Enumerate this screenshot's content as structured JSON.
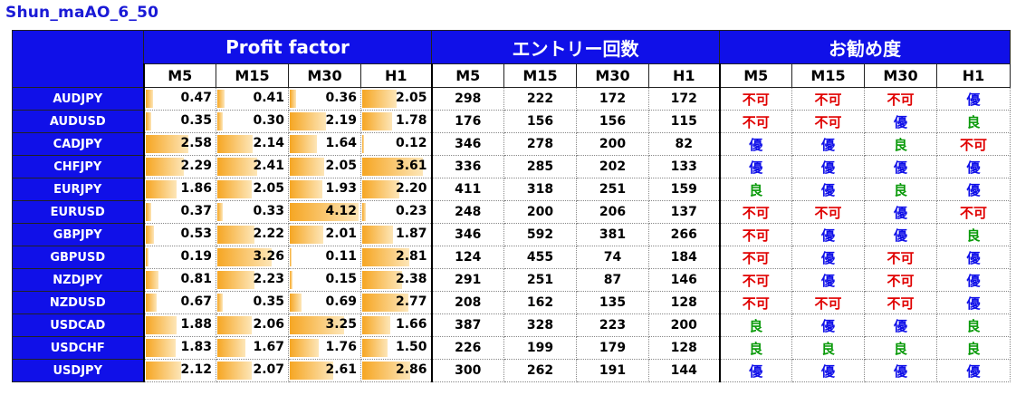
{
  "title": "Shun_maAO_6_50",
  "groups": [
    "Profit factor",
    "エントリー回数",
    "お勧め度"
  ],
  "timeframes": [
    "M5",
    "M15",
    "M30",
    "H1"
  ],
  "rec_colors": {
    "不可": "#e00000",
    "優": "#1010e8",
    "良": "#0a9a0a"
  },
  "rows": [
    {
      "pair": "AUDJPY",
      "pf": [
        "0.47",
        "0.41",
        "0.36",
        "2.05"
      ],
      "cnt": [
        "298",
        "222",
        "172",
        "172"
      ],
      "rec": [
        "不可",
        "不可",
        "不可",
        "優"
      ]
    },
    {
      "pair": "AUDUSD",
      "pf": [
        "0.35",
        "0.30",
        "2.19",
        "1.78"
      ],
      "cnt": [
        "176",
        "156",
        "156",
        "115"
      ],
      "rec": [
        "不可",
        "不可",
        "優",
        "良"
      ]
    },
    {
      "pair": "CADJPY",
      "pf": [
        "2.58",
        "2.14",
        "1.64",
        "0.12"
      ],
      "cnt": [
        "346",
        "278",
        "200",
        "82"
      ],
      "rec": [
        "優",
        "優",
        "良",
        "不可"
      ]
    },
    {
      "pair": "CHFJPY",
      "pf": [
        "2.29",
        "2.41",
        "2.05",
        "3.61"
      ],
      "cnt": [
        "336",
        "285",
        "202",
        "133"
      ],
      "rec": [
        "優",
        "優",
        "優",
        "優"
      ]
    },
    {
      "pair": "EURJPY",
      "pf": [
        "1.86",
        "2.05",
        "1.93",
        "2.20"
      ],
      "cnt": [
        "411",
        "318",
        "251",
        "159"
      ],
      "rec": [
        "良",
        "優",
        "良",
        "優"
      ]
    },
    {
      "pair": "EURUSD",
      "pf": [
        "0.37",
        "0.33",
        "4.12",
        "0.23"
      ],
      "cnt": [
        "248",
        "200",
        "206",
        "137"
      ],
      "rec": [
        "不可",
        "不可",
        "優",
        "不可"
      ]
    },
    {
      "pair": "GBPJPY",
      "pf": [
        "0.53",
        "2.22",
        "2.01",
        "1.87"
      ],
      "cnt": [
        "346",
        "592",
        "381",
        "266"
      ],
      "rec": [
        "不可",
        "優",
        "優",
        "良"
      ]
    },
    {
      "pair": "GBPUSD",
      "pf": [
        "0.19",
        "3.26",
        "0.11",
        "2.81"
      ],
      "cnt": [
        "124",
        "455",
        "74",
        "184"
      ],
      "rec": [
        "不可",
        "優",
        "不可",
        "優"
      ]
    },
    {
      "pair": "NZDJPY",
      "pf": [
        "0.81",
        "2.23",
        "0.15",
        "2.38"
      ],
      "cnt": [
        "291",
        "251",
        "87",
        "146"
      ],
      "rec": [
        "不可",
        "優",
        "不可",
        "優"
      ]
    },
    {
      "pair": "NZDUSD",
      "pf": [
        "0.67",
        "0.35",
        "0.69",
        "2.77"
      ],
      "cnt": [
        "208",
        "162",
        "135",
        "128"
      ],
      "rec": [
        "不可",
        "不可",
        "不可",
        "優"
      ]
    },
    {
      "pair": "USDCAD",
      "pf": [
        "1.88",
        "2.06",
        "3.25",
        "1.66"
      ],
      "cnt": [
        "387",
        "328",
        "223",
        "200"
      ],
      "rec": [
        "良",
        "優",
        "優",
        "良"
      ]
    },
    {
      "pair": "USDCHF",
      "pf": [
        "1.83",
        "1.67",
        "1.76",
        "1.50"
      ],
      "cnt": [
        "226",
        "199",
        "179",
        "128"
      ],
      "rec": [
        "良",
        "良",
        "良",
        "良"
      ]
    },
    {
      "pair": "USDJPY",
      "pf": [
        "2.12",
        "2.07",
        "2.61",
        "2.86"
      ],
      "cnt": [
        "300",
        "262",
        "191",
        "144"
      ],
      "rec": [
        "優",
        "優",
        "優",
        "優"
      ]
    }
  ]
}
